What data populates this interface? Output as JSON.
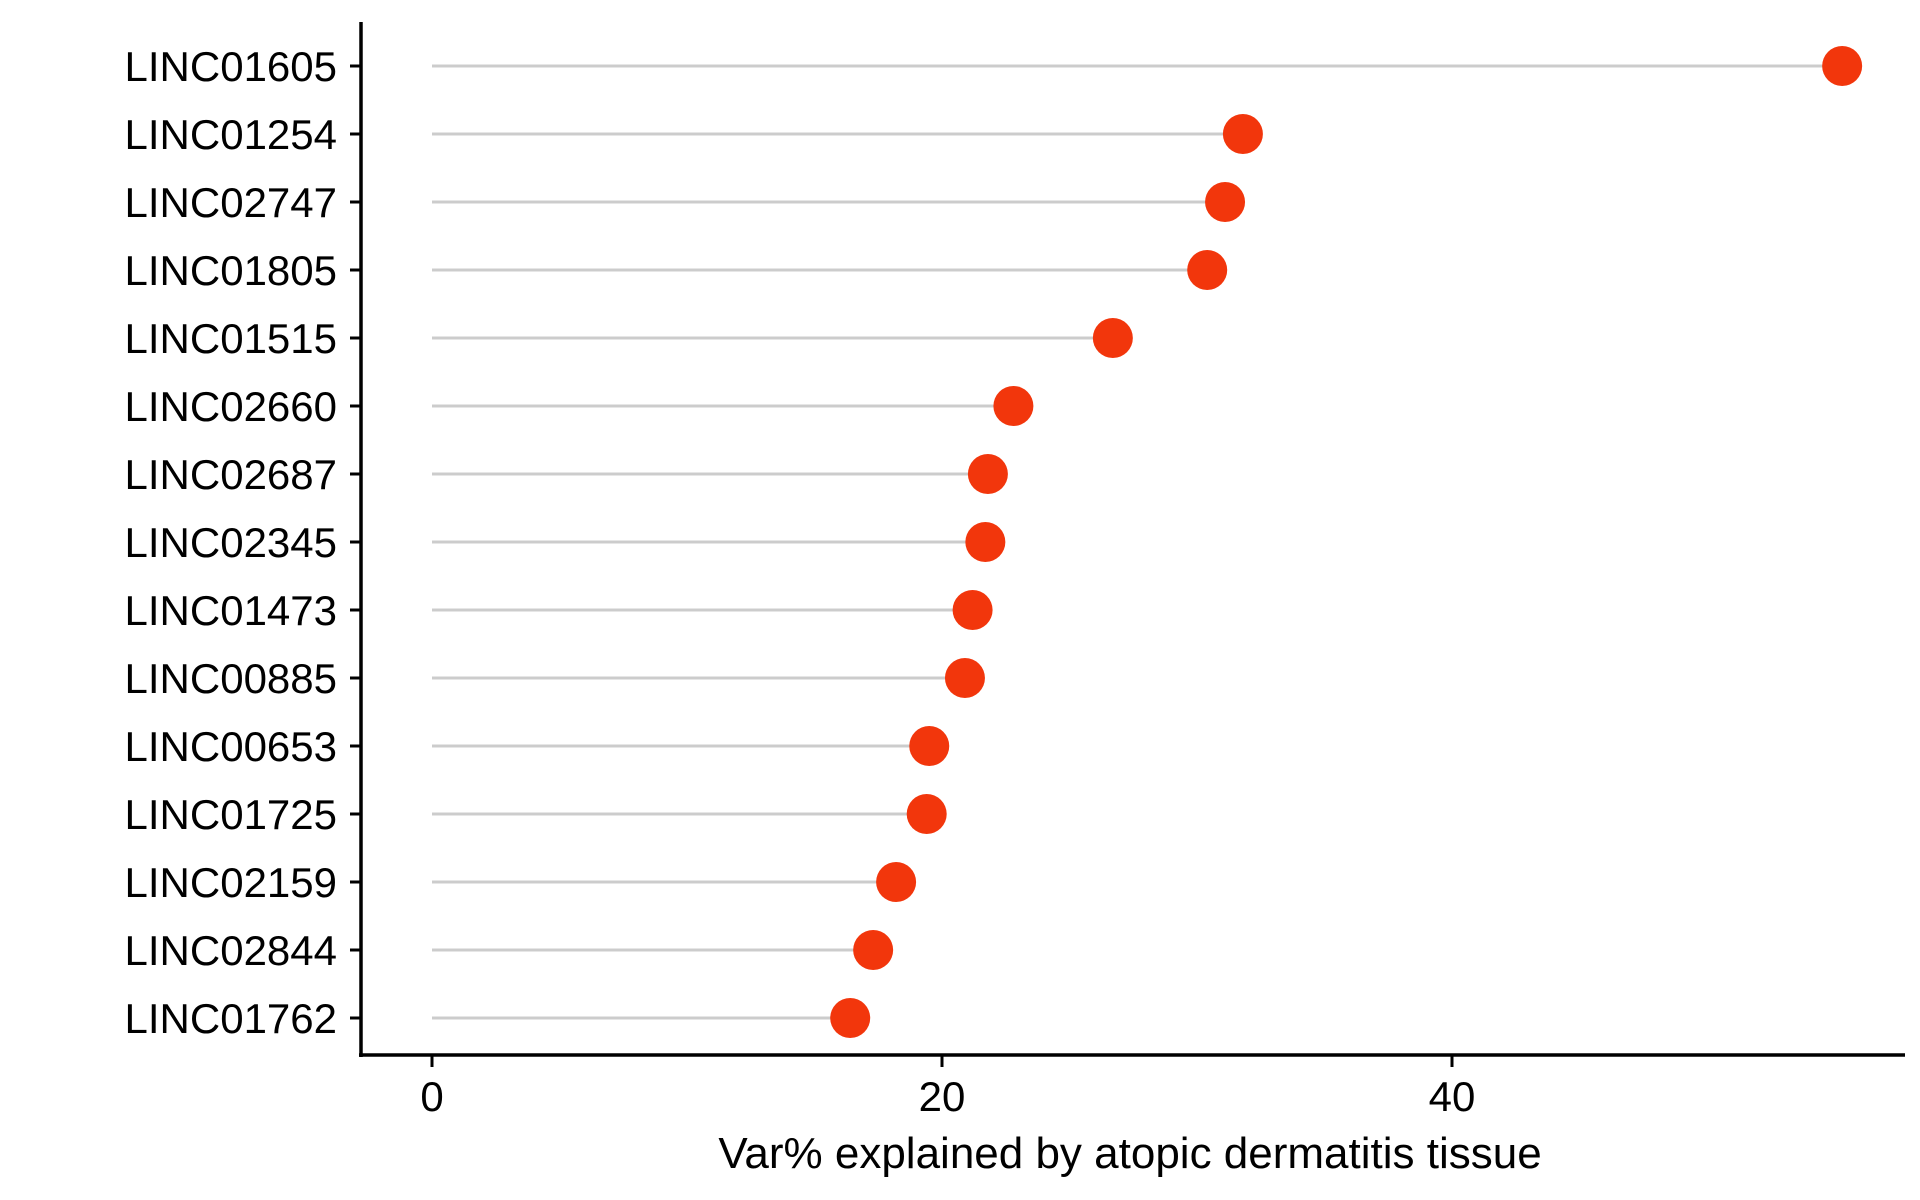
{
  "chart_data": {
    "type": "lollipop",
    "title": "",
    "xlabel": "Var% explained by atopic dermatitis tissue",
    "ylabel": "",
    "xlim": [
      -2.5,
      57
    ],
    "x_ticks": [
      0,
      20,
      40
    ],
    "x_tick_labels": [
      "0",
      "20",
      "40"
    ],
    "grid": false,
    "legend": "none",
    "point_color": "#F2360C",
    "stem_color": "#CCCCCC",
    "categories": [
      "LINC01605",
      "LINC01254",
      "LINC02747",
      "LINC01805",
      "LINC01515",
      "LINC02660",
      "LINC02687",
      "LINC02345",
      "LINC01473",
      "LINC00885",
      "LINC00653",
      "LINC01725",
      "LINC02159",
      "LINC02844",
      "LINC01762"
    ],
    "values": [
      55.3,
      31.8,
      31.1,
      30.4,
      26.7,
      22.8,
      21.8,
      21.7,
      21.2,
      20.9,
      19.5,
      19.4,
      18.2,
      17.3,
      16.4
    ]
  }
}
